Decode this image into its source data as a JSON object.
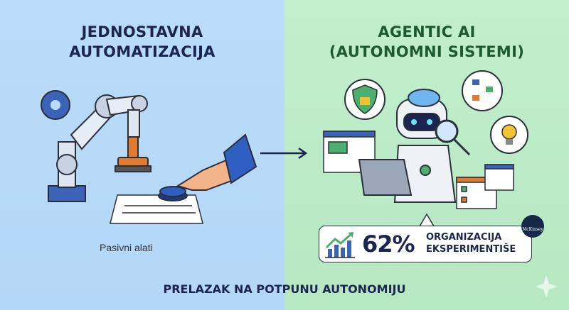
{
  "left": {
    "title_line1": "JEDNOSTAVNA",
    "title_line2": "AUTOMATIZACIJA",
    "caption": "Pasivni alati",
    "bg_color": "#b9dcfa"
  },
  "right": {
    "title_line1": "AGENTIC AI",
    "title_line2": "(AUTONOMNI SISTEMI)",
    "bg_color": "#c2efcc"
  },
  "stat": {
    "value": "62%",
    "line1": "ORGANIZACIJA",
    "line2": "EKSPERIMENTIŠE",
    "badge_logo": "McKinsey"
  },
  "footer": "PRELAZAK NA POTPUNU AUTONOMIJU",
  "icons": [
    "robot-arm-icon",
    "gear-icon",
    "stamp-icon",
    "hand-pointing-icon",
    "button-icon",
    "arrow-right-icon",
    "robot-icon",
    "brain-icon",
    "magnifier-icon",
    "laptop-icon",
    "shield-lock-icon",
    "flowchart-icon",
    "lightbulb-icon",
    "browser-window-icon",
    "checklist-icon",
    "growth-chart-icon",
    "sparkle-icon"
  ]
}
